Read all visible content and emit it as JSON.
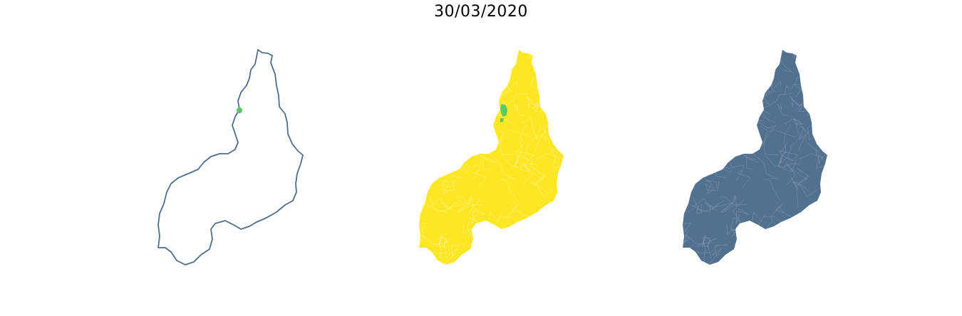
{
  "title": "30/03/2020",
  "colors": {
    "outline_stroke": "#4f6d8a",
    "case_marker": "#5ac864",
    "choropleth_base": "#fde725",
    "choropleth_case": "#5ac864",
    "municipality_fill": "#52708f",
    "municipality_border": "#8fa3b8"
  },
  "maps": [
    {
      "panel": "state-outline-with-case-point"
    },
    {
      "panel": "municipality-choropleth"
    },
    {
      "panel": "municipality-boundaries"
    }
  ]
}
